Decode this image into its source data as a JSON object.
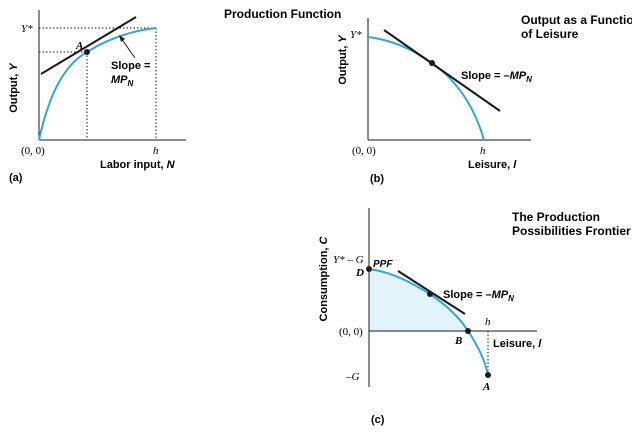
{
  "colors": {
    "curve": "#29a9dc",
    "shade": "#e3f3fa",
    "ink": "#1a1a1a"
  },
  "panel_a": {
    "title": "Production Function",
    "ylabel_main": "Output, ",
    "ylabel_var": "Y",
    "xlabel_main": "Labor input, ",
    "xlabel_var": "N",
    "origin": "(0, 0)",
    "ystar": "Y*",
    "h": "h",
    "point_a": "A",
    "slope_line1": "Slope =",
    "slope_line2_base": "MP",
    "slope_line2_sub": "N",
    "caption": "(a)"
  },
  "panel_b": {
    "title_line1": "Output as a Function",
    "title_line2": "of Leisure",
    "ylabel_main": "Output, ",
    "ylabel_var": "Y",
    "xlabel_main": "Leisure, ",
    "xlabel_var": "l",
    "origin": "(0, 0)",
    "ystar": "Y*",
    "h": "h",
    "slope_text": "Slope = –",
    "slope_base": "MP",
    "slope_sub": "N",
    "caption": "(b)"
  },
  "panel_c": {
    "title_line1": "The Production",
    "title_line2": "Possibilities Frontier",
    "ylabel_main": "Consumption, ",
    "ylabel_var": "C",
    "xlabel_main": "Leisure, ",
    "xlabel_var": "l",
    "origin": "(0, 0)",
    "ystar_g": "Y* – G",
    "neg_g": "–G",
    "h": "h",
    "ppf": "PPF",
    "point_d": "D",
    "point_b": "B",
    "point_a": "A",
    "slope_text": "Slope = –",
    "slope_base": "MP",
    "slope_sub": "N",
    "caption": "(c)"
  }
}
